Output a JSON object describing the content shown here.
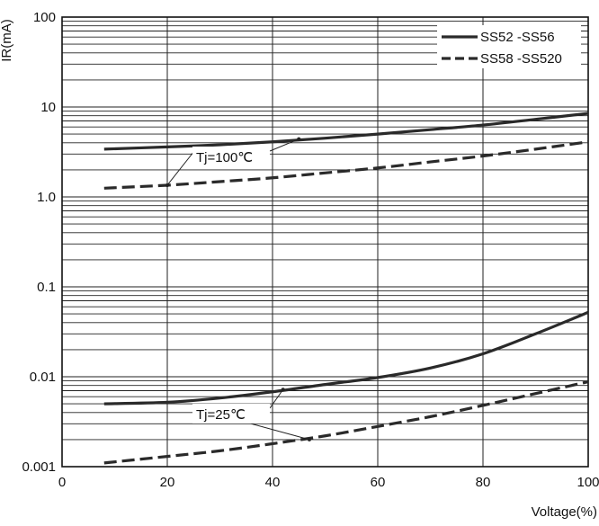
{
  "chart_data": {
    "type": "line",
    "xlabel": "Voltage(%)",
    "ylabel": "IR(mA)",
    "xlim": [
      0,
      100
    ],
    "ylim": [
      0.001,
      100
    ],
    "y_scale": "log",
    "x_ticks": [
      "0",
      "20",
      "40",
      "60",
      "80",
      "100"
    ],
    "y_ticks": [
      "0.001",
      "0.01",
      "0.1",
      "1.0",
      "10",
      "100"
    ],
    "grid": true,
    "legend_position": "top-right",
    "series": [
      {
        "name": "SS52 -SS56",
        "group": "Tj=100℃",
        "style": "solid",
        "x": [
          8,
          20,
          30,
          40,
          50,
          60,
          70,
          80,
          90,
          100
        ],
        "y": [
          3.4,
          3.6,
          3.8,
          4.1,
          4.5,
          5.0,
          5.6,
          6.3,
          7.3,
          8.5
        ]
      },
      {
        "name": "SS58 -SS520",
        "group": "Tj=100℃",
        "style": "dashed",
        "x": [
          8,
          20,
          30,
          40,
          50,
          60,
          70,
          80,
          90,
          100
        ],
        "y": [
          1.25,
          1.35,
          1.48,
          1.63,
          1.85,
          2.1,
          2.45,
          2.85,
          3.4,
          4.1
        ]
      },
      {
        "name": "SS52 -SS56",
        "group": "Tj=25℃",
        "style": "solid",
        "x": [
          8,
          20,
          30,
          40,
          50,
          60,
          70,
          80,
          90,
          100
        ],
        "y": [
          0.005,
          0.0052,
          0.0058,
          0.0068,
          0.0082,
          0.0098,
          0.0125,
          0.018,
          0.03,
          0.052
        ]
      },
      {
        "name": "SS58 -SS520",
        "group": "Tj=25℃",
        "style": "dashed",
        "x": [
          8,
          20,
          30,
          40,
          50,
          60,
          70,
          80,
          90,
          100
        ],
        "y": [
          0.0011,
          0.0013,
          0.0015,
          0.0018,
          0.0022,
          0.0028,
          0.0036,
          0.0048,
          0.0065,
          0.0088
        ]
      }
    ],
    "annotations": [
      {
        "text": "Tj=100℃",
        "targets": [
          {
            "x": 45,
            "y": 4.4
          },
          {
            "x": 20,
            "y": 1.35
          }
        ]
      },
      {
        "text": "Tj=25℃",
        "targets": [
          {
            "x": 42,
            "y": 0.0072
          },
          {
            "x": 47,
            "y": 0.002
          }
        ]
      }
    ]
  }
}
